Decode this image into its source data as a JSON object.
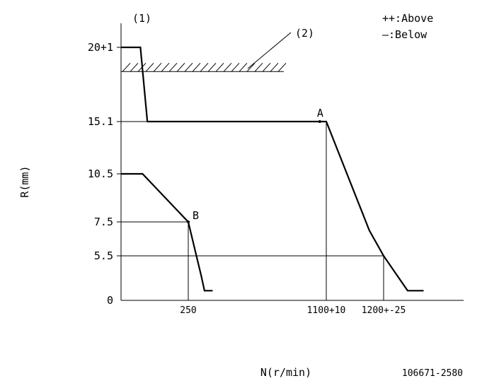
{
  "chart_data": {
    "type": "line",
    "corner_label": "(1)",
    "callout_label": "(2)",
    "legend": [
      "++:Above",
      "—:Below"
    ],
    "xlabel": "N(r/min)",
    "ylabel": "R(mm)",
    "code": "106671-2580",
    "y_ticks": [
      {
        "label": "20+1",
        "value": 20
      },
      {
        "label": "15.1",
        "value": 15.1
      },
      {
        "label": "10.5",
        "value": 10.5
      },
      {
        "label": "7.5",
        "value": 7.5
      },
      {
        "label": "5.5",
        "value": 5.5
      },
      {
        "label": "0",
        "value": 0
      }
    ],
    "x_ticks": [
      {
        "label": "250",
        "value": 250
      },
      {
        "label": "1100+10",
        "value": 1100
      },
      {
        "label": "1200+-25",
        "value": 1200
      }
    ],
    "points": [
      {
        "label": "A",
        "x": 1060,
        "y": 15.1
      },
      {
        "label": "B",
        "x": 250,
        "y": 7.5
      }
    ],
    "series": [
      {
        "values": [
          [
            0,
            20
          ],
          [
            72,
            20
          ],
          [
            98,
            15.1
          ],
          [
            1100,
            15.1
          ],
          [
            1175,
            7
          ],
          [
            1200,
            5.5
          ],
          [
            1260,
            1.2
          ],
          [
            1300,
            1.2
          ]
        ]
      },
      {
        "values": [
          [
            0,
            10.5
          ],
          [
            80,
            10.5
          ],
          [
            250,
            7.5
          ],
          [
            300,
            5.5
          ],
          [
            330,
            3
          ],
          [
            350,
            1.2
          ],
          [
            400,
            1.2
          ]
        ]
      }
    ],
    "hatch_band": {
      "x": [
        0,
        570
      ],
      "y": 18.4
    }
  }
}
